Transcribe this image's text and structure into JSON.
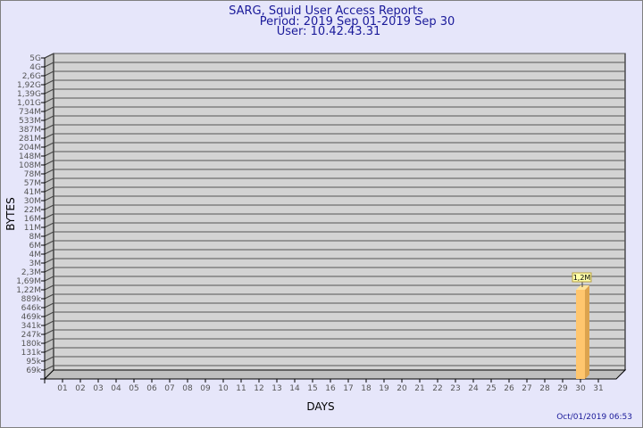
{
  "chart_data": {
    "type": "bar",
    "title": "SARG, Squid User Access Reports",
    "subtitle": [
      "Period: 2019 Sep 01-2019 Sep 30",
      "User: 10.42.43.31"
    ],
    "xlabel": "DAYS",
    "ylabel": "BYTES",
    "categories": [
      "01",
      "02",
      "03",
      "04",
      "05",
      "06",
      "07",
      "08",
      "09",
      "10",
      "11",
      "12",
      "13",
      "14",
      "15",
      "16",
      "17",
      "18",
      "19",
      "20",
      "21",
      "22",
      "23",
      "24",
      "25",
      "26",
      "27",
      "28",
      "29",
      "30",
      "31"
    ],
    "y_tick_labels": [
      "5G",
      "4G",
      "2,6G",
      "1,92G",
      "1,39G",
      "1,01G",
      "734M",
      "533M",
      "387M",
      "281M",
      "204M",
      "148M",
      "108M",
      "78M",
      "57M",
      "41M",
      "30M",
      "22M",
      "16M",
      "11M",
      "8M",
      "6M",
      "4M",
      "3M",
      "2,3M",
      "1,69M",
      "1,22M",
      "889k",
      "646k",
      "469k",
      "341k",
      "247k",
      "180k",
      "131k",
      "95k",
      "69k"
    ],
    "y_scale": "log",
    "grid": true,
    "series": [
      {
        "values": [
          null,
          null,
          null,
          null,
          null,
          null,
          null,
          null,
          null,
          null,
          null,
          null,
          null,
          null,
          null,
          null,
          null,
          null,
          null,
          null,
          null,
          null,
          null,
          null,
          null,
          null,
          null,
          null,
          null,
          "1,2M",
          null
        ]
      }
    ],
    "bar_value_bytes": {
      "30": 1200000
    },
    "data_labels": {
      "30": "1,2M"
    },
    "colors": {
      "bar_front": "#ffc66e",
      "bar_side": "#dca34e",
      "bar_top": "#ffe39a",
      "wall": "#d3d3d3",
      "text": "#1a1a9a",
      "background": "#e6e6fa"
    }
  },
  "timestamp": "Oct/01/2019 06:53"
}
